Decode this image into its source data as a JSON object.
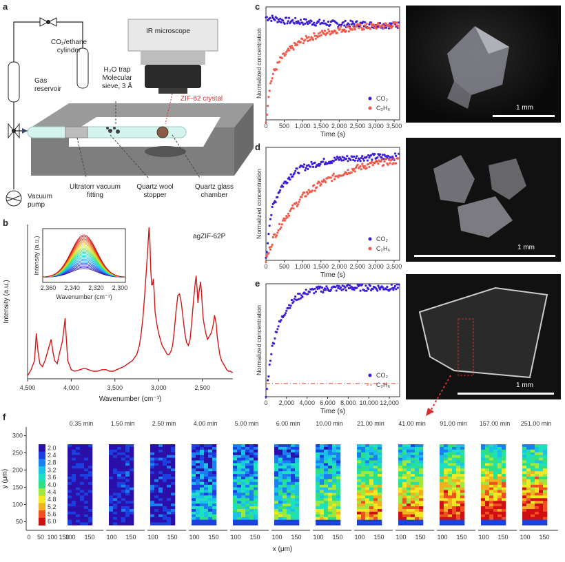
{
  "panels": {
    "a": "a",
    "b": "b",
    "c": "c",
    "d": "d",
    "e": "e",
    "f": "f"
  },
  "panel_a": {
    "cylinder": "CO₂/ethane cylinder",
    "reservoir": "Gas reservoir",
    "pump": "Vacuum pump",
    "fitting": "Ultratorr vacuum fitting",
    "stopper": "Quartz wool stopper",
    "chamber": "Quartz glass chamber",
    "trap": "H₂O trap Molecular sieve, 3 Å",
    "microscope": "IR microscope",
    "crystal": "ZIF-62 crystal"
  },
  "colors": {
    "co2": "#3b1fd6",
    "c2h6": "#f05a4a",
    "spectrum": "#d01818",
    "annotation": "#d63030"
  },
  "photos": {
    "scale_c": "1 mm",
    "scale_d": "1 mm",
    "scale_e": "1 mm"
  },
  "chart_data": [
    {
      "id": "b",
      "type": "line",
      "xlabel": "Wavenumber (cm⁻¹)",
      "ylabel": "Intensity (a.u.)",
      "label": "agZIF-62P",
      "xlim": [
        4500,
        2150
      ],
      "xticks": [
        "4,500",
        "4,000",
        "3,500",
        "3,000",
        "2,500"
      ],
      "x": [
        4500,
        4460,
        4420,
        4400,
        4380,
        4360,
        4330,
        4300,
        4260,
        4230,
        4210,
        4190,
        4160,
        4130,
        4100,
        4080,
        4070,
        4060,
        4040,
        4000,
        3960,
        3900,
        3850,
        3800,
        3750,
        3700,
        3650,
        3600,
        3560,
        3520,
        3480,
        3440,
        3400,
        3350,
        3300,
        3250,
        3220,
        3200,
        3180,
        3160,
        3140,
        3120,
        3110,
        3100,
        3090,
        3080,
        3070,
        3060,
        3050,
        3040,
        3020,
        3000,
        2980,
        2960,
        2940,
        2920,
        2900,
        2880,
        2860,
        2840,
        2820,
        2800,
        2780,
        2760,
        2740,
        2720,
        2700,
        2680,
        2660,
        2640,
        2620,
        2600,
        2580,
        2570,
        2560,
        2550,
        2540,
        2520,
        2510,
        2500,
        2490,
        2480,
        2460,
        2440,
        2420,
        2400,
        2380,
        2360,
        2340,
        2330,
        2320,
        2310,
        2300,
        2280,
        2260,
        2240,
        2220,
        2200,
        2180,
        2150
      ],
      "y": [
        0.02,
        0.06,
        0.12,
        0.3,
        0.18,
        0.1,
        0.08,
        0.12,
        0.2,
        0.26,
        0.18,
        0.12,
        0.1,
        0.18,
        0.25,
        0.35,
        0.4,
        0.3,
        0.12,
        0.06,
        0.05,
        0.06,
        0.07,
        0.06,
        0.05,
        0.05,
        0.06,
        0.06,
        0.05,
        0.05,
        0.06,
        0.07,
        0.08,
        0.1,
        0.12,
        0.16,
        0.22,
        0.3,
        0.4,
        0.55,
        0.72,
        0.9,
        1.0,
        0.92,
        0.72,
        0.62,
        0.62,
        0.66,
        0.56,
        0.44,
        0.36,
        0.3,
        0.26,
        0.22,
        0.2,
        0.18,
        0.16,
        0.16,
        0.18,
        0.22,
        0.32,
        0.45,
        0.55,
        0.56,
        0.5,
        0.4,
        0.3,
        0.24,
        0.22,
        0.26,
        0.38,
        0.52,
        0.64,
        0.68,
        0.6,
        0.5,
        0.56,
        0.64,
        0.58,
        0.48,
        0.4,
        0.36,
        0.3,
        0.26,
        0.28,
        0.3,
        0.34,
        0.42,
        0.36,
        0.28,
        0.24,
        0.2,
        0.16,
        0.12,
        0.1,
        0.08,
        0.06,
        0.05,
        0.05,
        0.04
      ],
      "inset": {
        "xlabel": "Wavenumber (cm⁻¹)",
        "ylabel": "Intensity (a.u.)",
        "xticks": [
          "2,360",
          "2,340",
          "2,320",
          "2,300"
        ]
      }
    },
    {
      "id": "c",
      "type": "scatter",
      "xlabel": "Time (s)",
      "ylabel": "Normalized concentration",
      "xlim": [
        0,
        3650
      ],
      "xticks": [
        "0",
        "500",
        "1,000",
        "1,500",
        "2,000",
        "2,500",
        "3,000",
        "3,500"
      ],
      "series": [
        {
          "name": "CO₂",
          "x": [
            0,
            200,
            500,
            1000,
            1500,
            2000,
            2500,
            3000,
            3500,
            3650
          ],
          "y": [
            0.93,
            0.92,
            0.9,
            0.89,
            0.88,
            0.87,
            0.87,
            0.86,
            0.86,
            0.86
          ]
        },
        {
          "name": "C₂H₆",
          "x": [
            0,
            100,
            200,
            400,
            700,
            1000,
            1500,
            2000,
            2500,
            3000,
            3500,
            3650
          ],
          "y": [
            0.0,
            0.3,
            0.42,
            0.55,
            0.65,
            0.72,
            0.78,
            0.82,
            0.84,
            0.85,
            0.86,
            0.86
          ]
        }
      ]
    },
    {
      "id": "d",
      "type": "scatter",
      "xlabel": "Time (s)",
      "ylabel": "Normalized concentration",
      "xlim": [
        0,
        3650
      ],
      "xticks": [
        "0",
        "500",
        "1,000",
        "1,500",
        "2,000",
        "2,500",
        "3,000",
        "3,500"
      ],
      "series": [
        {
          "name": "CO₂",
          "x": [
            0,
            100,
            200,
            400,
            700,
            1000,
            1500,
            2000,
            2500,
            3000,
            3650
          ],
          "y": [
            0.0,
            0.35,
            0.5,
            0.66,
            0.78,
            0.84,
            0.89,
            0.92,
            0.93,
            0.94,
            0.94
          ]
        },
        {
          "name": "C₂H₆",
          "x": [
            0,
            200,
            500,
            1000,
            1500,
            2000,
            2500,
            3000,
            3500,
            3650
          ],
          "y": [
            0.0,
            0.2,
            0.38,
            0.58,
            0.7,
            0.78,
            0.84,
            0.88,
            0.9,
            0.91
          ]
        }
      ]
    },
    {
      "id": "e",
      "type": "scatter",
      "xlabel": "Time (s)",
      "ylabel": "Normalized concentration",
      "xlim": [
        0,
        13000
      ],
      "xticks": [
        "0",
        "2,000",
        "4,000",
        "6,000",
        "8,000",
        "10,000",
        "12,000"
      ],
      "series": [
        {
          "name": "CO₂",
          "x": [
            0,
            500,
            1000,
            2000,
            3000,
            4000,
            5000,
            6000,
            8000,
            10000,
            13000
          ],
          "y": [
            0.0,
            0.4,
            0.6,
            0.8,
            0.9,
            0.95,
            0.97,
            0.98,
            0.99,
            0.99,
            0.99
          ]
        },
        {
          "name": "C₂H₆",
          "x": [
            0,
            13000
          ],
          "y": [
            0.12,
            0.12
          ]
        }
      ]
    },
    {
      "id": "f",
      "type": "heatmap",
      "xlabel": "x (μm)",
      "ylabel": "y (μm)",
      "yticks": [
        "50",
        "100",
        "150",
        "200",
        "250",
        "300"
      ],
      "xticks_first": [
        "0",
        "50",
        "100",
        "150"
      ],
      "xticks_rest": [
        "100",
        "150"
      ],
      "times": [
        "0.35 min",
        "1.50 min",
        "2.50 min",
        "4.00 min",
        "5.00 min",
        "6.00 min",
        "10.00 min",
        "21.00 min",
        "41.00 min",
        "91.00 min",
        "157.00 min",
        "251.00 min"
      ],
      "fill_level": [
        0.0,
        0.05,
        0.1,
        0.35,
        0.45,
        0.5,
        0.6,
        0.8,
        0.85,
        0.95,
        0.97,
        1.0
      ],
      "colorbar": {
        "labels": [
          "2.0",
          "2.4",
          "2.8",
          "3.2",
          "3.6",
          "4.0",
          "4.4",
          "4.8",
          "5.2",
          "5.6",
          "6.0"
        ],
        "colors": [
          "#2a0fa8",
          "#1c3fe0",
          "#1c7ff0",
          "#1cc0e8",
          "#1ce0c0",
          "#30e080",
          "#a0e840",
          "#f0e820",
          "#f0b020",
          "#f05020",
          "#d01010"
        ]
      }
    }
  ]
}
